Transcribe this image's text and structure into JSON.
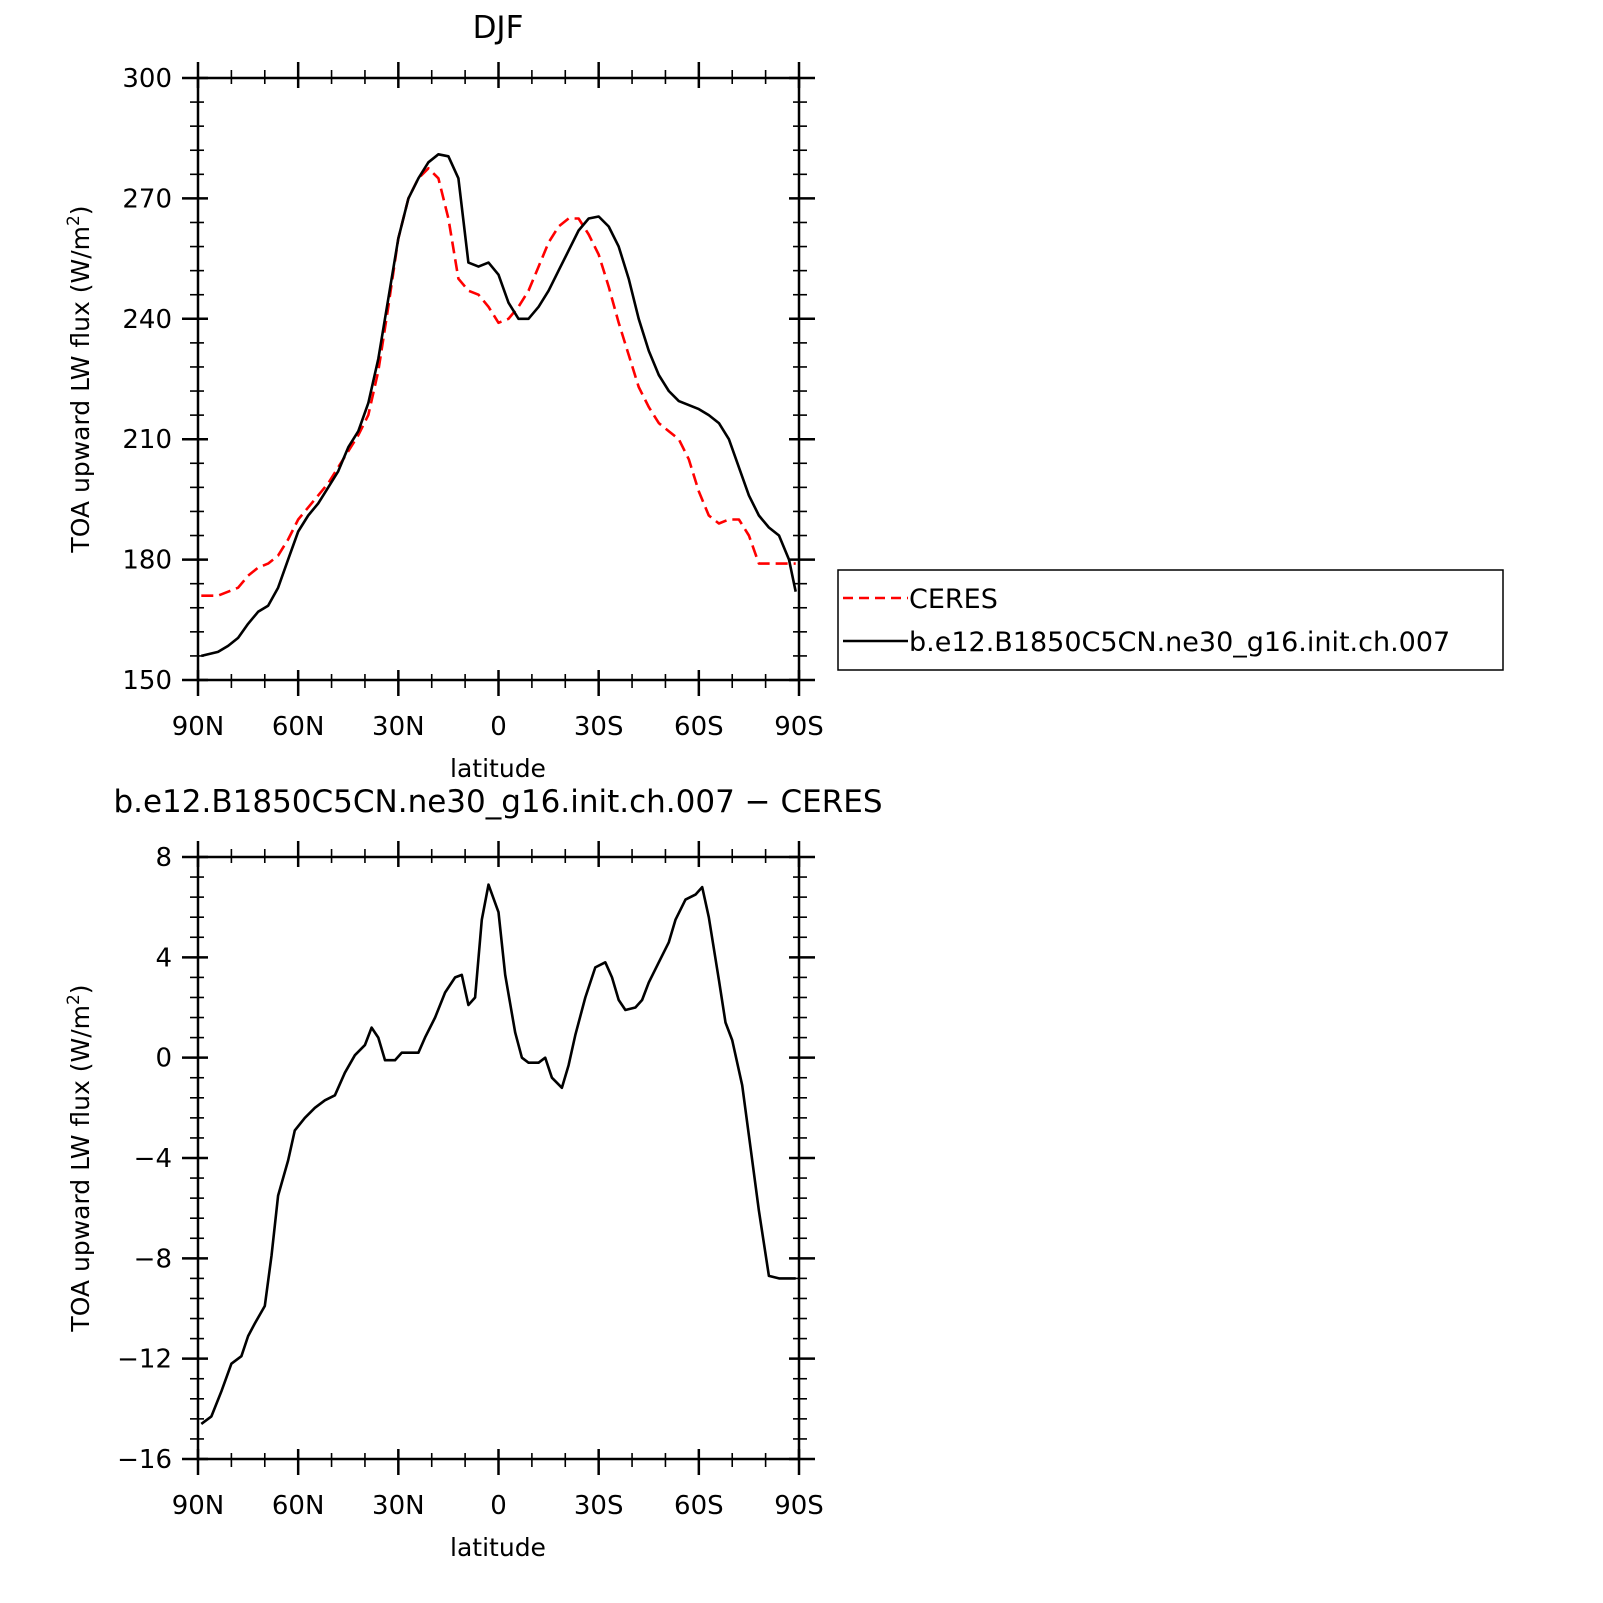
{
  "chart_data": [
    {
      "type": "line",
      "title": "DJF",
      "xlabel": "latitude",
      "ylabel": "TOA upward LW flux (W/m",
      "ylabel_sup": "2",
      "ylabel_tail": ")",
      "xlim": [
        90,
        -90
      ],
      "ylim": [
        150,
        300
      ],
      "xticks": [
        90,
        60,
        30,
        0,
        -30,
        -60,
        -90
      ],
      "xtick_labels": [
        "90N",
        "60N",
        "30N",
        "0",
        "30S",
        "60S",
        "90S"
      ],
      "yticks": [
        150,
        180,
        210,
        240,
        270,
        300
      ],
      "ytick_labels": [
        "150",
        "180",
        "210",
        "240",
        "270",
        "300"
      ],
      "grid": false,
      "legend_position": "outside-right",
      "series": [
        {
          "name": "CERES",
          "color": "#ff0000",
          "dash": "dashed",
          "x": [
            89,
            84,
            81,
            78,
            75,
            72,
            69,
            66,
            63,
            60,
            57,
            54,
            51,
            48,
            45,
            42,
            39,
            36,
            33,
            30,
            27,
            24,
            21,
            18,
            15,
            12,
            9,
            6,
            3,
            0,
            -3,
            -6,
            -9,
            -12,
            -15,
            -18,
            -21,
            -24,
            -27,
            -30,
            -33,
            -36,
            -39,
            -42,
            -45,
            -48,
            -51,
            -54,
            -57,
            -60,
            -63,
            -66,
            -69,
            -72,
            -75,
            -78,
            -81,
            -84,
            -87,
            -89
          ],
          "y": [
            171,
            171,
            172,
            173,
            176,
            178,
            179,
            181,
            185,
            190,
            193,
            196,
            199,
            203,
            207,
            211,
            216,
            227,
            243,
            260,
            270,
            275,
            277.5,
            275,
            265,
            250,
            247,
            246,
            243,
            239,
            240,
            243,
            247,
            253,
            259,
            263,
            265,
            265,
            261,
            256,
            248,
            239,
            231,
            223,
            218,
            214,
            212,
            210,
            205,
            197,
            191,
            189,
            190,
            190,
            186,
            179,
            179,
            179,
            179,
            179
          ],
          "x_visible_end": -89
        },
        {
          "name": "b.e12.B1850C5CN.ne30_g16.init.ch.007",
          "color": "#000000",
          "dash": "solid",
          "x": [
            89,
            84,
            81,
            78,
            75,
            72,
            69,
            66,
            63,
            60,
            57,
            54,
            51,
            48,
            45,
            42,
            39,
            36,
            33,
            30,
            27,
            24,
            21,
            18,
            15,
            12,
            9,
            6,
            3,
            0,
            -3,
            -6,
            -9,
            -12,
            -15,
            -18,
            -21,
            -24,
            -27,
            -30,
            -33,
            -36,
            -39,
            -42,
            -45,
            -48,
            -51,
            -54,
            -57,
            -60,
            -63,
            -66,
            -69,
            -72,
            -75,
            -78,
            -81,
            -84,
            -87,
            -89
          ],
          "y": [
            156,
            157,
            158.5,
            160.5,
            164,
            167,
            168.5,
            173,
            180,
            187,
            191,
            194,
            198,
            202,
            208,
            212,
            219,
            230,
            245,
            260,
            270,
            275,
            279,
            281,
            280.5,
            275,
            254,
            253,
            254,
            251,
            244,
            240,
            240,
            243,
            247,
            252,
            257,
            262,
            265,
            265.5,
            263,
            258,
            250,
            240,
            232,
            226,
            222,
            219.5,
            218.5,
            217.5,
            216,
            214,
            210,
            203,
            196,
            191,
            188,
            186,
            180,
            172
          ]
        }
      ]
    },
    {
      "type": "line",
      "title": "b.e12.B1850C5CN.ne30_g16.init.ch.007 − CERES",
      "xlabel": "latitude",
      "ylabel": "TOA upward LW flux (W/m",
      "ylabel_sup": "2",
      "ylabel_tail": ")",
      "xlim": [
        90,
        -90
      ],
      "ylim": [
        -16,
        8
      ],
      "xticks": [
        90,
        60,
        30,
        0,
        -30,
        -60,
        -90
      ],
      "xtick_labels": [
        "90N",
        "60N",
        "30N",
        "0",
        "30S",
        "60S",
        "90S"
      ],
      "yticks": [
        -16,
        -12,
        -8,
        -4,
        0,
        4,
        8
      ],
      "ytick_labels": [
        "−16",
        "−12",
        "−8",
        "−4",
        "0",
        "4",
        "8"
      ],
      "grid": false,
      "series": [
        {
          "name": "",
          "color": "#000000",
          "dash": "solid",
          "x": [
            89,
            86,
            83,
            80,
            77,
            75,
            73,
            70,
            68,
            66,
            63,
            61,
            58,
            55,
            52,
            49,
            46,
            43,
            40,
            38,
            36,
            34,
            31,
            29,
            27,
            24,
            22,
            19,
            16,
            13,
            11,
            9,
            7,
            5,
            3,
            0,
            -2,
            -5,
            -7,
            -9,
            -12,
            -14,
            -16,
            -19,
            -21,
            -23,
            -26,
            -29,
            -32,
            -34,
            -36,
            -38,
            -41,
            -43,
            -45,
            -48,
            -51,
            -53,
            -56,
            -59,
            -61,
            -63,
            -66,
            -68,
            -70,
            -73,
            -75,
            -78,
            -81,
            -84,
            -87,
            -89
          ],
          "y": [
            -14.6,
            -14.3,
            -13.3,
            -12.2,
            -11.9,
            -11.1,
            -10.6,
            -9.9,
            -7.9,
            -5.5,
            -4.1,
            -2.9,
            -2.4,
            -2.0,
            -1.7,
            -1.5,
            -0.6,
            0.1,
            0.5,
            1.2,
            0.8,
            -0.1,
            -0.1,
            0.2,
            0.2,
            0.2,
            0.8,
            1.6,
            2.6,
            3.2,
            3.3,
            2.1,
            2.4,
            5.5,
            6.9,
            5.8,
            3.3,
            1.0,
            0.0,
            -0.2,
            -0.2,
            0.0,
            -0.8,
            -1.2,
            -0.3,
            0.9,
            2.4,
            3.6,
            3.8,
            3.2,
            2.3,
            1.9,
            2.0,
            2.3,
            3.0,
            3.8,
            4.6,
            5.5,
            6.3,
            6.5,
            6.8,
            5.6,
            3.1,
            1.4,
            0.7,
            -1.1,
            -3.1,
            -6.1,
            -8.7,
            -8.8,
            -8.8,
            -8.8
          ]
        }
      ]
    }
  ]
}
